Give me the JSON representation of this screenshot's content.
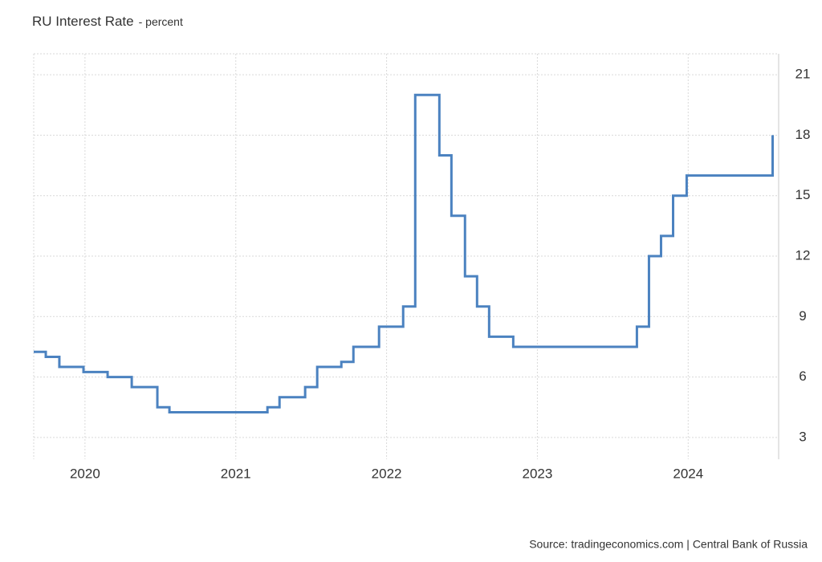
{
  "chart_data": {
    "type": "line",
    "interpolation": "step-after",
    "title": "RU Interest Rate",
    "subtitle": "- percent",
    "source": "Source: tradingeconomics.com | Central Bank of Russia",
    "x": [
      2019.66,
      2019.74,
      2019.83,
      2019.99,
      2020.15,
      2020.31,
      2020.48,
      2020.56,
      2021.21,
      2021.29,
      2021.46,
      2021.54,
      2021.7,
      2021.78,
      2021.95,
      2022.11,
      2022.19,
      2022.35,
      2022.43,
      2022.52,
      2022.6,
      2022.68,
      2022.84,
      2023.66,
      2023.74,
      2023.82,
      2023.9,
      2023.99,
      2024.56
    ],
    "series": [
      {
        "name": "RU Interest Rate",
        "color": "#4b82c0",
        "values": [
          7.25,
          7.0,
          6.5,
          6.25,
          6.0,
          5.5,
          4.5,
          4.25,
          4.5,
          5.0,
          5.5,
          6.5,
          6.75,
          7.5,
          8.5,
          9.5,
          20,
          17,
          14,
          11,
          9.5,
          8.0,
          7.5,
          8.5,
          12,
          13,
          15,
          16,
          18
        ]
      }
    ],
    "xlim": [
      2019.66,
      2024.6
    ],
    "xticks": [
      2020,
      2021,
      2022,
      2023,
      2024
    ],
    "ylim": [
      1.92,
      22.04
    ],
    "yticks": [
      3,
      6,
      9,
      12,
      15,
      18,
      21
    ],
    "y_axis_side": "right",
    "grid": true
  }
}
